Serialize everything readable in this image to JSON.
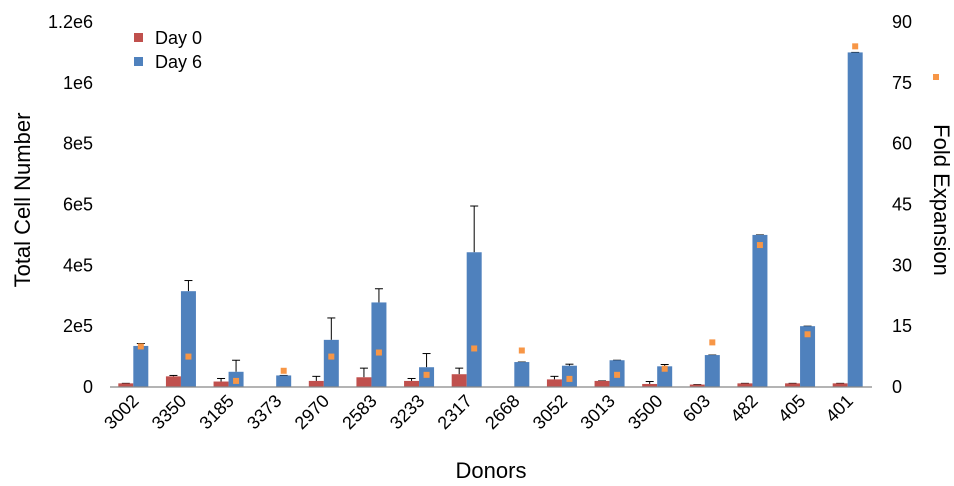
{
  "chart_data": {
    "type": "bar",
    "xlabel": "Donors",
    "ylabel": "Total Cell Number",
    "y2label": "Fold Expansion",
    "categories": [
      "3002",
      "3350",
      "3185",
      "3373",
      "2970",
      "2583",
      "3233",
      "2317",
      "2668",
      "3052",
      "3013",
      "3500",
      "603",
      "482",
      "405",
      "401"
    ],
    "ylim": [
      0,
      1200000
    ],
    "yticks": [
      0,
      200000,
      400000,
      600000,
      800000,
      1000000,
      1200000
    ],
    "ytick_labels": [
      "0",
      "2e5",
      "4e5",
      "6e5",
      "8e5",
      "1e6",
      "1.2e6"
    ],
    "y2lim": [
      0,
      90
    ],
    "y2ticks": [
      0,
      15,
      30,
      45,
      60,
      75,
      90
    ],
    "y2tick_labels": [
      "0",
      "15",
      "30",
      "45",
      "60",
      "75",
      "90"
    ],
    "series": [
      {
        "name": "Day 0",
        "color": "#c0504d",
        "values": [
          12000,
          35000,
          18000,
          0,
          20000,
          32000,
          20000,
          42000,
          0,
          25000,
          20000,
          10000,
          8000,
          12000,
          12000,
          12000
        ],
        "errors": [
          0,
          3000,
          10000,
          0,
          15000,
          30000,
          8000,
          20000,
          0,
          10000,
          0,
          8000,
          0,
          0,
          0,
          0
        ]
      },
      {
        "name": "Day 6",
        "color": "#4f81bd",
        "values": [
          135000,
          315000,
          50000,
          38000,
          155000,
          278000,
          65000,
          443000,
          82000,
          70000,
          88000,
          68000,
          105000,
          500000,
          200000,
          1100000
        ],
        "errors": [
          8000,
          35000,
          38000,
          0,
          72000,
          45000,
          45000,
          152000,
          0,
          5000,
          0,
          6000,
          0,
          0,
          0,
          0
        ]
      },
      {
        "name": "Fold Expansion",
        "axis": "right",
        "marker": "square",
        "color": "#f79646",
        "values": [
          10,
          7.5,
          1.5,
          4,
          7.5,
          8.5,
          3,
          9.5,
          9,
          2,
          3,
          4.5,
          11,
          35,
          13,
          84
        ]
      }
    ],
    "legend": "top-left",
    "grid": false
  }
}
